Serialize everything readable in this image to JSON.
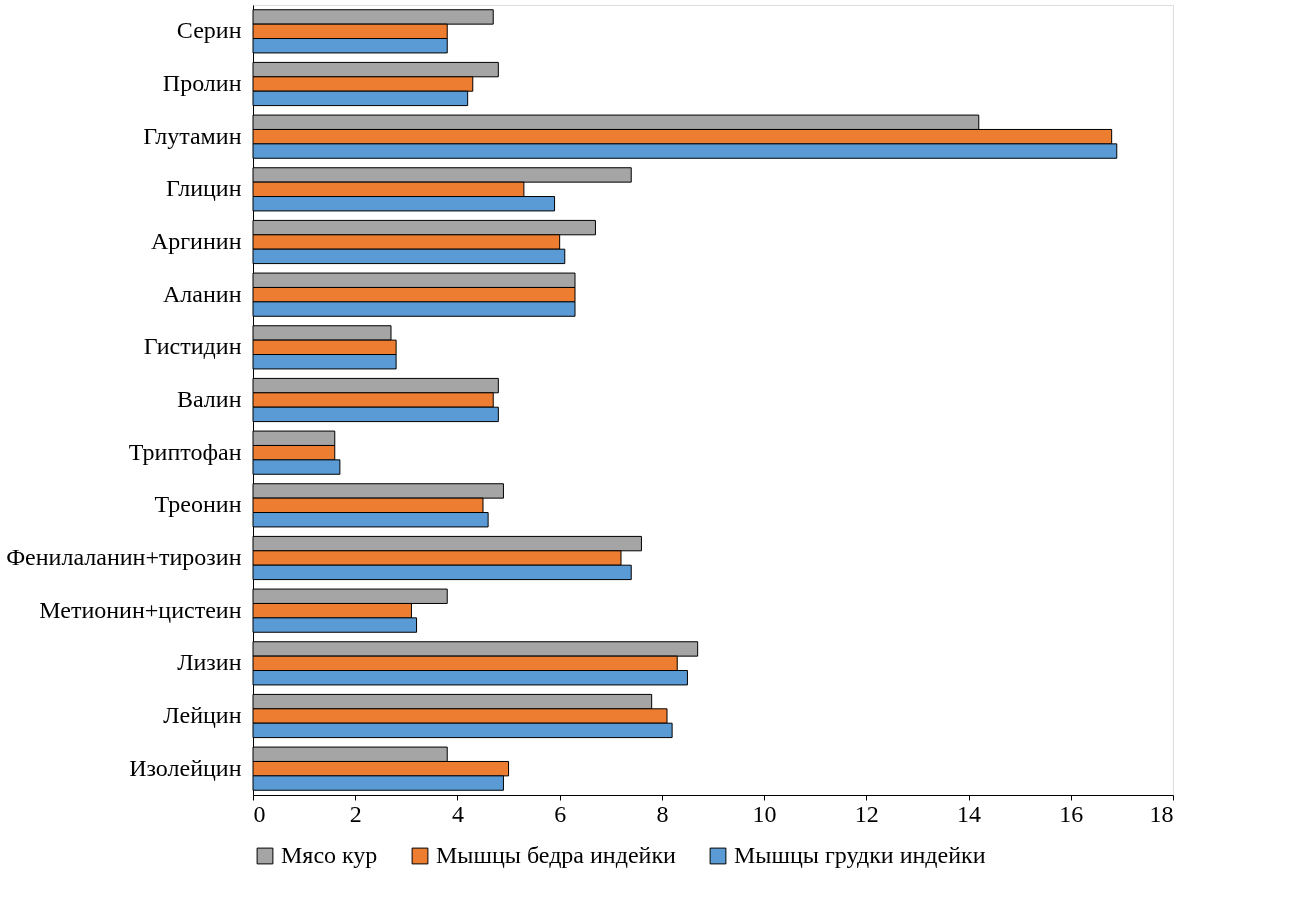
{
  "chart_data": {
    "type": "bar",
    "orientation": "horizontal",
    "categories": [
      "Серин",
      "Пролин",
      "Глутамин",
      "Глицин",
      "Аргинин",
      "Аланин",
      "Гистидин",
      "Валин",
      "Триптофан",
      "Треонин",
      "Фенилаланин+тирозин",
      "Метионин+цистеин",
      "Лизин",
      "Лейцин",
      "Изолейцин"
    ],
    "series": [
      {
        "name": "Мясо кур",
        "color": "#a5a5a5",
        "values": [
          4.7,
          4.8,
          14.2,
          7.4,
          6.7,
          6.3,
          2.7,
          4.8,
          1.6,
          4.9,
          7.6,
          3.8,
          8.7,
          7.8,
          3.8
        ]
      },
      {
        "name": "Мышцы бедра индейки",
        "color": "#ed7d31",
        "values": [
          3.8,
          4.3,
          16.8,
          5.3,
          6.0,
          6.3,
          2.8,
          4.7,
          1.6,
          4.5,
          7.2,
          3.1,
          8.3,
          8.1,
          5.0
        ]
      },
      {
        "name": "Мышцы грудки индейки",
        "color": "#5b9bd5",
        "values": [
          3.8,
          4.2,
          16.9,
          5.9,
          6.1,
          6.3,
          2.8,
          4.8,
          1.7,
          4.6,
          7.4,
          3.2,
          8.5,
          8.2,
          4.9
        ]
      }
    ],
    "xlim": [
      0,
      18
    ],
    "xticks": [
      0,
      2,
      4,
      6,
      8,
      10,
      12,
      14,
      16,
      18
    ],
    "grid": false,
    "legend": "bottom"
  }
}
